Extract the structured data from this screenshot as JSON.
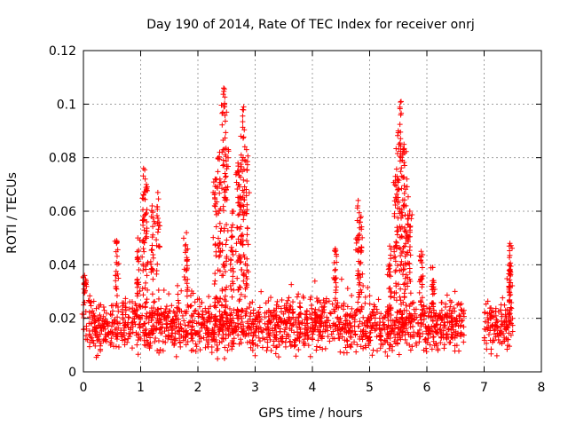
{
  "chart_data": {
    "type": "scatter",
    "title": "Day 190 of 2014, Rate Of TEC Index for receiver onrj",
    "xlabel": "GPS time / hours",
    "ylabel": "ROTI / TECUs",
    "xlim": [
      0,
      8
    ],
    "ylim": [
      0,
      0.12
    ],
    "xticks": [
      0,
      1,
      2,
      3,
      4,
      5,
      6,
      7,
      8
    ],
    "xtick_labels": [
      "0",
      "1",
      "2",
      "3",
      "4",
      "5",
      "6",
      "7",
      "8"
    ],
    "yticks": [
      0,
      0.02,
      0.04,
      0.06,
      0.08,
      0.1,
      0.12
    ],
    "ytick_labels": [
      "0",
      "0.02",
      "0.04",
      "0.06",
      "0.08",
      "0.1",
      "0.12"
    ],
    "grid": true,
    "marker": "plus",
    "color": "#ff0000",
    "series": [
      {
        "name": "ROTI",
        "baseline": {
          "x_ranges": [
            [
              0.0,
              6.65
            ],
            [
              7.0,
              7.5
            ]
          ],
          "typical_range": [
            0.008,
            0.025
          ]
        },
        "peaks": [
          {
            "x": 0.02,
            "y": 0.036
          },
          {
            "x": 0.58,
            "y": 0.049
          },
          {
            "x": 0.95,
            "y": 0.05
          },
          {
            "x": 1.05,
            "y": 0.076
          },
          {
            "x": 1.1,
            "y": 0.07
          },
          {
            "x": 1.2,
            "y": 0.062
          },
          {
            "x": 1.3,
            "y": 0.067
          },
          {
            "x": 1.8,
            "y": 0.052
          },
          {
            "x": 2.3,
            "y": 0.072
          },
          {
            "x": 2.38,
            "y": 0.082
          },
          {
            "x": 2.45,
            "y": 0.106
          },
          {
            "x": 2.5,
            "y": 0.097
          },
          {
            "x": 2.6,
            "y": 0.06
          },
          {
            "x": 2.7,
            "y": 0.078
          },
          {
            "x": 2.75,
            "y": 0.088
          },
          {
            "x": 2.8,
            "y": 0.099
          },
          {
            "x": 2.85,
            "y": 0.083
          },
          {
            "x": 4.4,
            "y": 0.046
          },
          {
            "x": 4.8,
            "y": 0.064
          },
          {
            "x": 4.85,
            "y": 0.058
          },
          {
            "x": 5.35,
            "y": 0.047
          },
          {
            "x": 5.45,
            "y": 0.073
          },
          {
            "x": 5.5,
            "y": 0.09
          },
          {
            "x": 5.55,
            "y": 0.101
          },
          {
            "x": 5.6,
            "y": 0.085
          },
          {
            "x": 5.65,
            "y": 0.072
          },
          {
            "x": 5.7,
            "y": 0.06
          },
          {
            "x": 5.9,
            "y": 0.045
          },
          {
            "x": 6.1,
            "y": 0.039
          },
          {
            "x": 7.45,
            "y": 0.048
          },
          {
            "x": 7.45,
            "y": 0.038
          }
        ]
      }
    ]
  }
}
